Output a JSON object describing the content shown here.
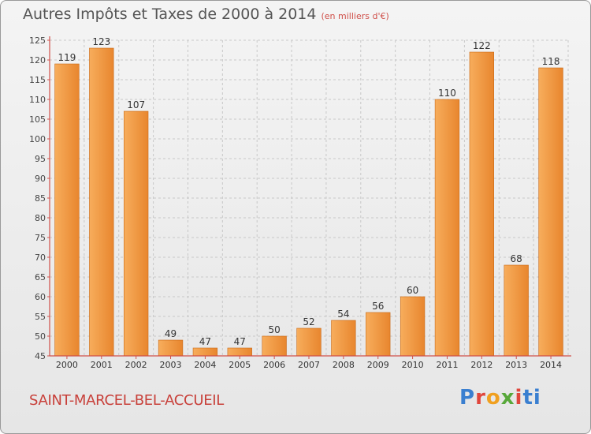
{
  "header": {
    "title": "Autres Impôts et Taxes de 2000 à 2014",
    "subtitle": "(en milliers d'€)"
  },
  "footer": {
    "city": "SAINT-MARCEL-BEL-ACCUEIL",
    "logo_letters": [
      "P",
      "r",
      "o",
      "x",
      "i",
      "t",
      "i"
    ]
  },
  "colors": {
    "bar_light": "#f6a552",
    "bar_dark": "#d87420",
    "axis": "#d0504a",
    "grid": "#c8c8c8"
  },
  "chart_data": {
    "type": "bar",
    "title": "Autres Impôts et Taxes de 2000 à 2014",
    "subtitle": "(en milliers d'€)",
    "xlabel": "",
    "ylabel": "",
    "categories": [
      "2000",
      "2001",
      "2002",
      "2003",
      "2004",
      "2005",
      "2006",
      "2007",
      "2008",
      "2009",
      "2010",
      "2011",
      "2012",
      "2013",
      "2014"
    ],
    "values": [
      119,
      123,
      107,
      49,
      47,
      47,
      50,
      52,
      54,
      56,
      60,
      110,
      122,
      68,
      118
    ],
    "ylim": [
      45,
      125
    ],
    "yticks": [
      45,
      50,
      55,
      60,
      65,
      70,
      75,
      80,
      85,
      90,
      95,
      100,
      105,
      110,
      115,
      120,
      125
    ],
    "grid": true,
    "data_labels": true
  }
}
